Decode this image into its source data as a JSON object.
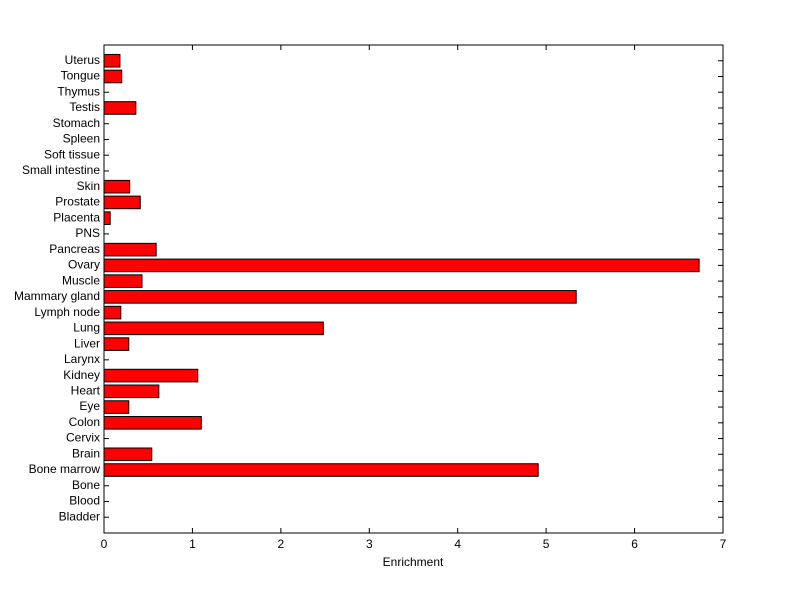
{
  "chart_data": {
    "type": "barh",
    "x_label": "Enrichment",
    "categories": [
      "Bladder",
      "Blood",
      "Bone",
      "Bone marrow",
      "Brain",
      "Cervix",
      "Colon",
      "Eye",
      "Heart",
      "Kidney",
      "Larynx",
      "Liver",
      "Lung",
      "Lymph node",
      "Mammary gland",
      "Muscle",
      "Ovary",
      "Pancreas",
      "PNS",
      "Placenta",
      "Prostate",
      "Skin",
      "Small intestine",
      "Soft tissue",
      "Spleen",
      "Stomach",
      "Testis",
      "Thymus",
      "Tongue",
      "Uterus"
    ],
    "values": [
      0,
      0,
      0,
      4.91,
      0.54,
      0,
      1.1,
      0.28,
      0.62,
      1.06,
      0,
      0.28,
      2.48,
      0.19,
      5.34,
      0.43,
      6.73,
      0.59,
      0,
      0.07,
      0.41,
      0.29,
      0,
      0,
      0,
      0,
      0.36,
      0,
      0.2,
      0.18
    ],
    "color": "#ff0000",
    "xlim": [
      0,
      7
    ],
    "xticks": [
      0,
      1,
      2,
      3,
      4,
      5,
      6,
      7
    ]
  }
}
